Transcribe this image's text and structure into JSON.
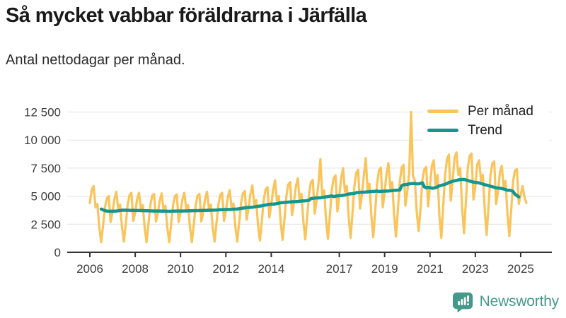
{
  "header": {
    "title": "Så mycket vabbar föräldrarna i Järfälla",
    "subtitle": "Antal nettodagar per månad."
  },
  "legend": {
    "items": [
      {
        "label": "Per månad",
        "color": "#F9C45A"
      },
      {
        "label": "Trend",
        "color": "#14968F"
      }
    ]
  },
  "footer": {
    "brand": "Newsworthy",
    "icon": "newsworthy-bubble-bar-chart-icon",
    "color": "#45998B"
  },
  "colors": {
    "per_month_line": "#F9C45A",
    "trend_line": "#14968F",
    "axis": "#333333",
    "grid": "#e2e2e2",
    "tick_text": "#3d3d3d"
  },
  "chart_data": {
    "type": "line",
    "title": "Så mycket vabbar föräldrarna i Järfälla",
    "ylabel": "Antal nettodagar per månad",
    "x_unit": "month",
    "start": "2006-01",
    "end": "2025-04",
    "grid": true,
    "legend_position": "top-right",
    "x_tick_years": [
      2006,
      2008,
      2010,
      2012,
      2014,
      2017,
      2019,
      2021,
      2023,
      2025
    ],
    "x_tick_labels": [
      "2006",
      "2008",
      "2010",
      "2012",
      "2014",
      "2017",
      "2019",
      "2021",
      "2023",
      "2025"
    ],
    "y_ticks": [
      0,
      2500,
      5000,
      7500,
      10000,
      12500
    ],
    "y_tick_labels": [
      "0",
      "2 500",
      "5 000",
      "7 500",
      "10 000",
      "12 500"
    ],
    "ylim": [
      0,
      13050
    ],
    "series": [
      {
        "name": "Per månad",
        "color": "#F9C45A",
        "values": [
          4400,
          5600,
          5900,
          4000,
          4300,
          2200,
          900,
          2400,
          4000,
          4800,
          5000,
          2700,
          3600,
          4750,
          5400,
          3900,
          4250,
          2250,
          950,
          2500,
          4250,
          5100,
          5300,
          2800,
          3550,
          4700,
          5300,
          3850,
          4200,
          2200,
          900,
          2500,
          4200,
          5050,
          5200,
          2750,
          3500,
          4600,
          5250,
          3800,
          4150,
          2200,
          900,
          2450,
          4150,
          5000,
          5150,
          2700,
          3550,
          4700,
          5300,
          3850,
          4200,
          2200,
          900,
          2500,
          4200,
          5050,
          5200,
          2750,
          3600,
          4750,
          5400,
          3900,
          4250,
          2250,
          950,
          2550,
          4250,
          5100,
          5300,
          2800,
          3700,
          4900,
          5550,
          4000,
          4350,
          2300,
          950,
          2600,
          4350,
          5250,
          5450,
          2900,
          3950,
          5200,
          5950,
          4250,
          4650,
          2450,
          1050,
          2750,
          4650,
          5600,
          5800,
          3100,
          4250,
          5600,
          6400,
          4600,
          5000,
          2650,
          1100,
          2950,
          5000,
          6050,
          6250,
          3300,
          4400,
          5800,
          6600,
          4750,
          5200,
          2750,
          1150,
          3100,
          5200,
          6250,
          6450,
          3450,
          4650,
          6150,
          8300,
          5000,
          5500,
          2900,
          1200,
          3250,
          5500,
          6600,
          6850,
          3650,
          5000,
          6600,
          7500,
          5400,
          5900,
          3100,
          1300,
          3500,
          5900,
          7100,
          7350,
          3900,
          5150,
          6800,
          8400,
          5550,
          6100,
          3200,
          1350,
          3600,
          6100,
          7300,
          7550,
          4000,
          5300,
          7000,
          7950,
          5700,
          6250,
          3300,
          1400,
          3700,
          6250,
          7550,
          7800,
          4150,
          5400,
          7100,
          12500,
          6800,
          6400,
          3600,
          1900,
          3900,
          6500,
          7400,
          7600,
          4100,
          5900,
          7700,
          8200,
          5800,
          6900,
          3200,
          1300,
          4100,
          6900,
          8300,
          8700,
          4600,
          6400,
          8400,
          8900,
          6900,
          7500,
          4000,
          1700,
          4500,
          7500,
          8600,
          8800,
          4700,
          5900,
          7800,
          8200,
          6400,
          6900,
          3700,
          1550,
          4150,
          6900,
          7900,
          8100,
          4300,
          5400,
          7100,
          7700,
          5800,
          6350,
          3400,
          1450,
          3800,
          6350,
          7300,
          7400,
          4300,
          5100,
          5900,
          4900,
          4400
        ]
      },
      {
        "name": "Trend",
        "color": "#14968F",
        "derived_from": "Per månad",
        "method": "12-month centered moving average"
      }
    ]
  }
}
